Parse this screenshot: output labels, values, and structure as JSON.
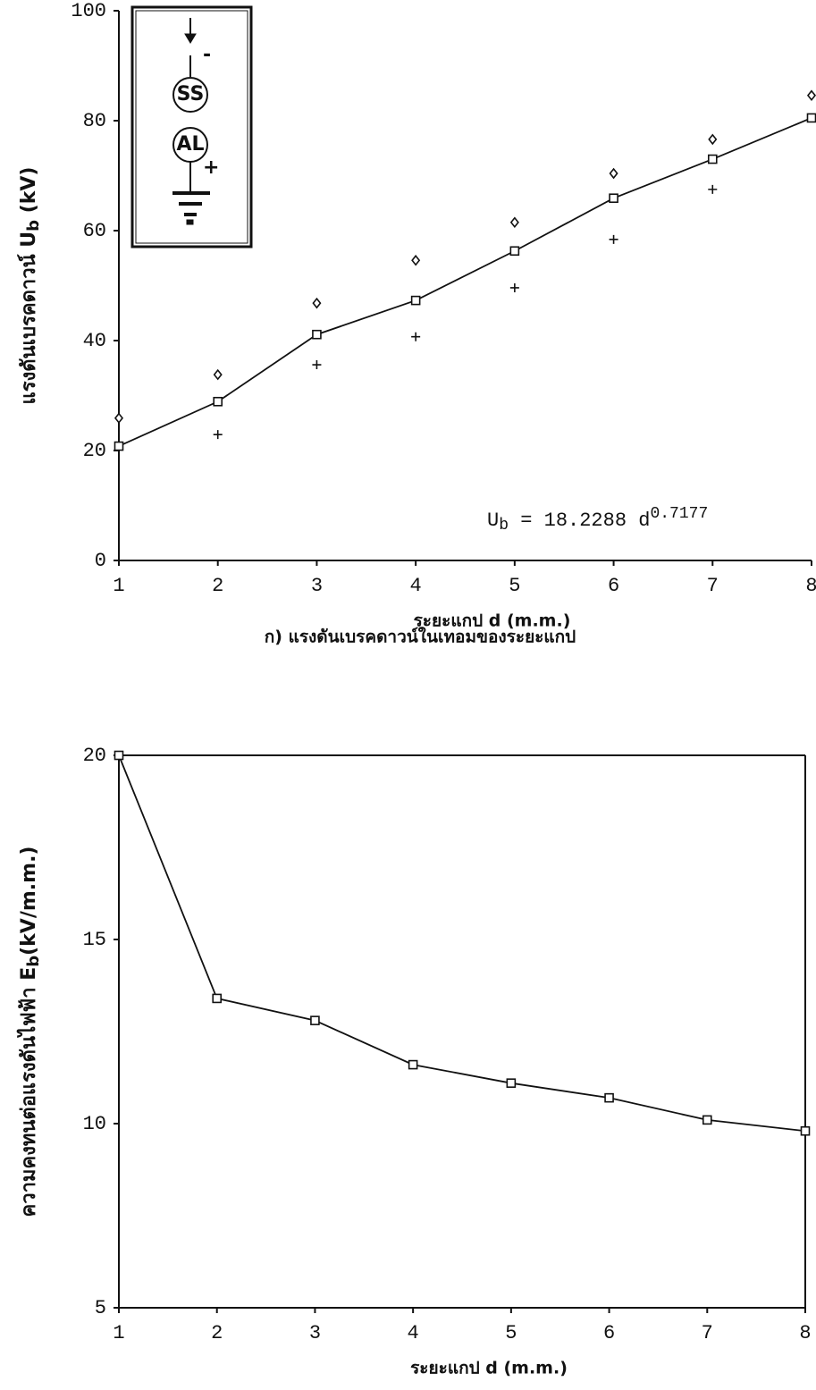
{
  "chart_data": [
    {
      "type": "line",
      "xlim": [
        1,
        8
      ],
      "xticks": [
        1,
        2,
        3,
        4,
        5,
        6,
        7,
        8
      ],
      "ylim": [
        0,
        100
      ],
      "yticks": [
        0,
        20,
        40,
        60,
        80,
        100
      ],
      "ylabel": [
        "แรงดันเบรคดาวน์ U",
        "b",
        " (kV)"
      ],
      "xlabel": "ระยะแกป d (m.m.)",
      "caption": "ก) แรงดันเบรคดาวน์ในเทอมของระยะแกป",
      "annotation": [
        "U",
        "b",
        " = 18.2288 d",
        "0.7177"
      ],
      "inset_labels": [
        "SS",
        "AL",
        "-",
        "+"
      ],
      "x": [
        1,
        2,
        3,
        4,
        5,
        6,
        7,
        8
      ],
      "series": [
        {
          "marker": "square",
          "line": true,
          "color": "#111",
          "values": [
            20.8,
            28.9,
            41.1,
            47.3,
            56.3,
            65.9,
            73.0,
            80.5
          ]
        },
        {
          "marker": "diamond",
          "line": false,
          "color": "#111",
          "values": [
            25.9,
            33.8,
            46.8,
            54.6,
            61.5,
            70.4,
            76.6,
            84.6
          ]
        },
        {
          "marker": "plus",
          "line": false,
          "color": "#111",
          "values": [
            null,
            22.9,
            35.6,
            40.7,
            49.6,
            58.4,
            67.5,
            null
          ]
        }
      ]
    },
    {
      "type": "line",
      "xlim": [
        1,
        8
      ],
      "xticks": [
        1,
        2,
        3,
        4,
        5,
        6,
        7,
        8
      ],
      "ylim": [
        5,
        20
      ],
      "yticks": [
        5,
        10,
        15,
        20
      ],
      "ylabel": [
        "ความคงทนต่อแรงดันไฟฟ้า E",
        "b",
        "(kV/m.m.)"
      ],
      "xlabel": "ระยะแกป d (m.m.)",
      "frame": true,
      "x": [
        1,
        2,
        3,
        4,
        5,
        6,
        7,
        8
      ],
      "series": [
        {
          "marker": "square",
          "line": true,
          "color": "#111",
          "values": [
            20.0,
            13.4,
            12.8,
            11.6,
            11.1,
            10.7,
            10.1,
            9.8
          ]
        }
      ]
    }
  ]
}
